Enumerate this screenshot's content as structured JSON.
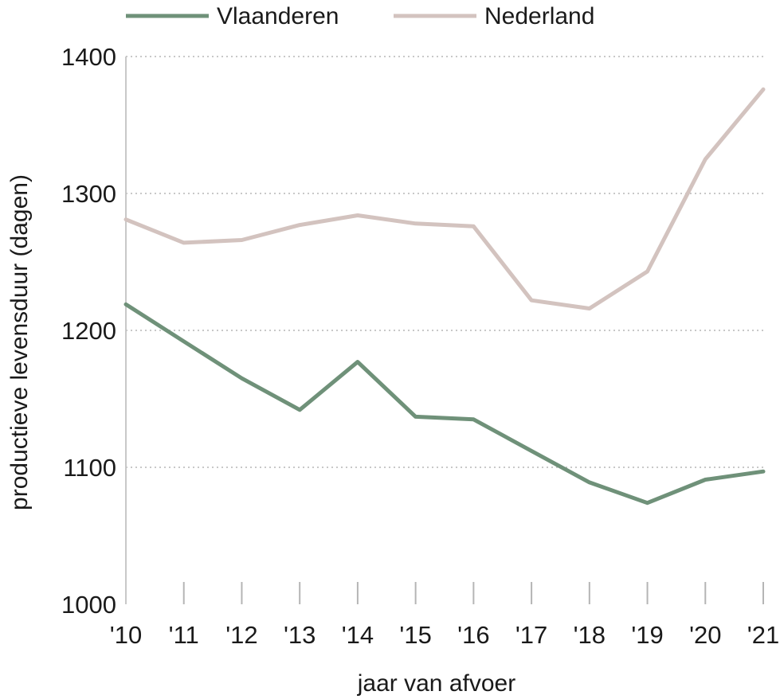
{
  "chart_data": {
    "type": "line",
    "title": "",
    "xlabel": "jaar van afvoer",
    "ylabel": "productieve levensduur (dagen)",
    "categories": [
      "'10",
      "'11",
      "'12",
      "'13",
      "'14",
      "'15",
      "'16",
      "'17",
      "'18",
      "'19",
      "'20",
      "'21"
    ],
    "ylim": [
      1000,
      1400
    ],
    "yticks": [
      "1000",
      "1100",
      "1200",
      "1300",
      "1400"
    ],
    "grid": "horizontal dotted",
    "legend_position": "top",
    "series": [
      {
        "name": "Vlaanderen",
        "color": "#6f9179",
        "values": [
          1219,
          1192,
          1165,
          1142,
          1177,
          1137,
          1135,
          1112,
          1089,
          1074,
          1091,
          1097
        ]
      },
      {
        "name": "Nederland",
        "color": "#d3c3bf",
        "values": [
          1281,
          1264,
          1266,
          1277,
          1284,
          1278,
          1276,
          1222,
          1216,
          1243,
          1325,
          1376
        ]
      }
    ]
  }
}
